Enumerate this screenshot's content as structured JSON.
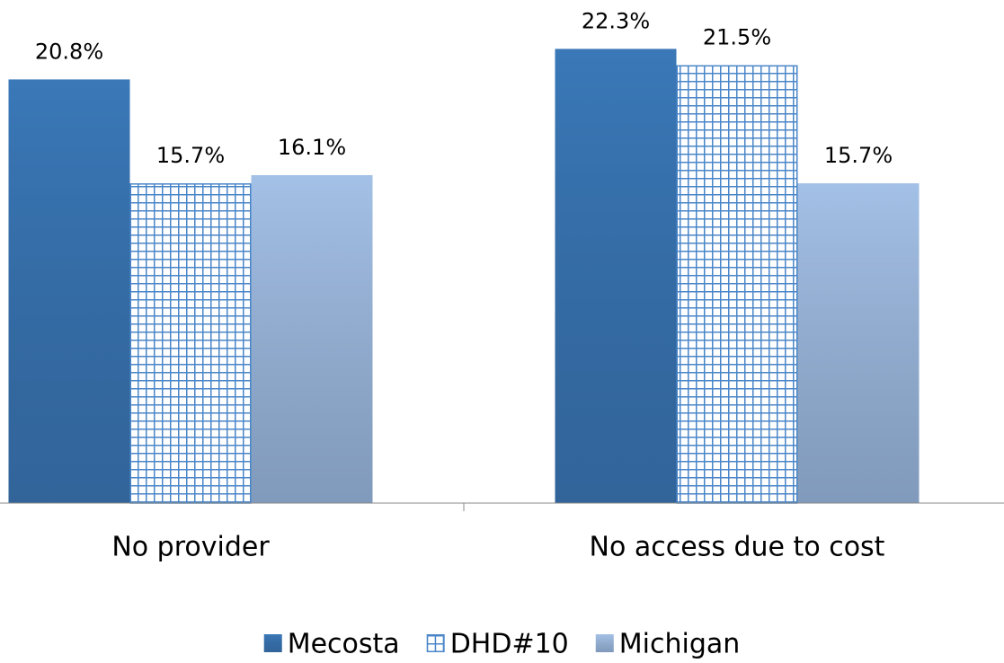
{
  "chart_data": {
    "type": "bar",
    "categories": [
      "No provider",
      "No access due to cost"
    ],
    "series": [
      {
        "name": "Mecosta",
        "color": "#3a78b8",
        "values": [
          20.8,
          22.3
        ],
        "value_labels": [
          "20.8%",
          "22.3%"
        ]
      },
      {
        "name": "DHD#10",
        "color": "#4a86c8",
        "pattern": "grid",
        "values": [
          15.7,
          21.5
        ],
        "value_labels": [
          "15.7%",
          "21.5%"
        ]
      },
      {
        "name": "Michigan",
        "color": "#a3c0e6",
        "values": [
          16.1,
          15.7
        ],
        "value_labels": [
          "16.1%",
          "15.7%"
        ]
      }
    ],
    "ylim": [
      0,
      24.7
    ],
    "legend": "bottom"
  }
}
